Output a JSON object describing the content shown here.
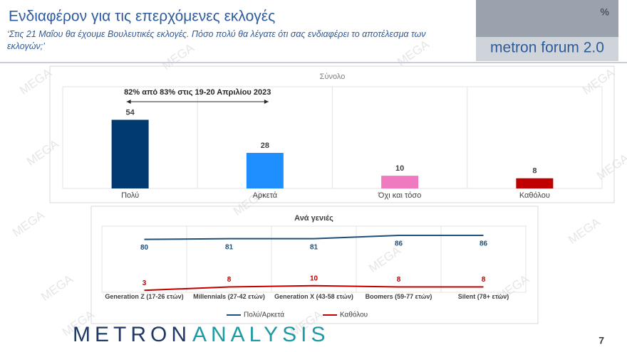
{
  "header": {
    "title": "Ενδιαφέρον για τις επερχόμενες εκλογές",
    "subtitle": "‘Στις 21 Μαΐου θα έχουμε Βουλευτικές εκλογές. Πόσο πολύ θα λέγατε ότι σας ενδιαφέρει το αποτέλεσμα των εκλογών;’",
    "logo": "metron forum 2.0",
    "logo_mark": "%"
  },
  "watermark": "MEGA",
  "chart_data": [
    {
      "type": "bar",
      "title": "Σύνολο",
      "categories": [
        "Πολύ",
        "Αρκετά",
        "Όχι και τόσο",
        "Καθόλου"
      ],
      "values": [
        54,
        28,
        10,
        8
      ],
      "colors": [
        "#003a70",
        "#1f8fff",
        "#f07ac0",
        "#c00000"
      ],
      "ylim": [
        0,
        80
      ],
      "annotation": "82% από 83% στις 19-20 Απριλίου 2023"
    },
    {
      "type": "line",
      "title": "Ανά γενιές",
      "categories": [
        "Generation Z (17-26 ετών)",
        "Millennials (27-42 ετών)",
        "Generation X (43-58 ετών)",
        "Boomers (59-77 ετών)",
        "Silent (78+ ετών)"
      ],
      "series": [
        {
          "name": "Πολύ/Αρκετά",
          "color": "#1f4e79",
          "values": [
            80,
            81,
            81,
            86,
            86
          ]
        },
        {
          "name": "Καθόλου",
          "color": "#c00000",
          "values": [
            3,
            8,
            10,
            8,
            8
          ]
        }
      ],
      "ylim": [
        0,
        100
      ],
      "legend": "bottom"
    }
  ],
  "footer": {
    "brand_left": "METRON",
    "brand_right": "ANALYSIS",
    "page": "7"
  }
}
